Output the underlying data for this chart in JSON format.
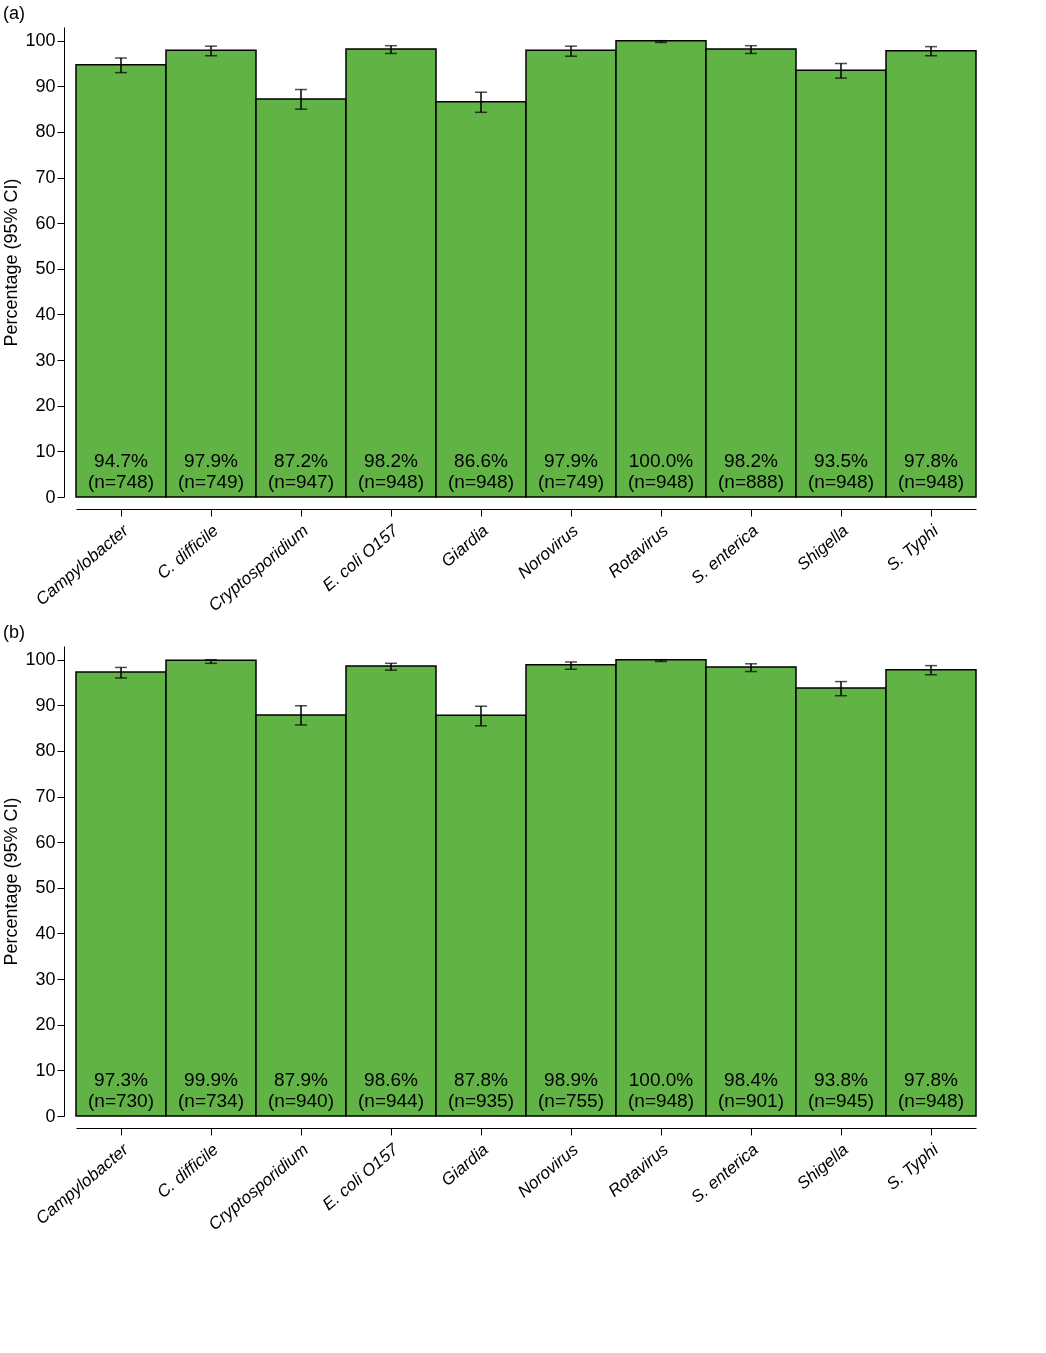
{
  "chart_data": [
    {
      "type": "bar",
      "title": "(a)",
      "ylabel": "Percentage (95% CI)",
      "categories": [
        "Campylobacter",
        "C. difficile",
        "Cryptosporidium",
        "E. coli O157",
        "Giardia",
        "Norovirus",
        "Rotavirus",
        "S. enterica",
        "Shigella",
        "S. Typhi"
      ],
      "series": [
        {
          "color": "#62b346",
          "values": [
            94.7,
            97.9,
            87.2,
            98.2,
            86.6,
            97.9,
            100.0,
            98.2,
            93.5,
            97.8
          ],
          "errors": [
            [
              93.0,
              96.2
            ],
            [
              96.7,
              98.8
            ],
            [
              85.0,
              89.3
            ],
            [
              97.2,
              98.9
            ],
            [
              84.3,
              88.7
            ],
            [
              96.6,
              98.8
            ],
            [
              99.6,
              100.0
            ],
            [
              97.2,
              98.9
            ],
            [
              91.8,
              95.0
            ],
            [
              96.7,
              98.7
            ]
          ],
          "value_labels": [
            "94.7%\n(n=748)",
            "97.9%\n(n=749)",
            "87.2%\n(n=947)",
            "98.2%\n(n=948)",
            "86.6%\n(n=948)",
            "97.9%\n(n=749)",
            "100.0%\n(n=948)",
            "98.2%\n(n=888)",
            "93.5%\n(n=948)",
            "97.8%\n(n=948)"
          ]
        }
      ],
      "ylim": [
        0,
        103
      ],
      "yticks": [
        0,
        10,
        20,
        30,
        40,
        50,
        60,
        70,
        80,
        90,
        100
      ],
      "grid": false
    },
    {
      "type": "bar",
      "title": "(b)",
      "ylabel": "Percentage (95% CI)",
      "categories": [
        "Campylobacter",
        "C. difficile",
        "Cryptosporidium",
        "E. coli O157",
        "Giardia",
        "Norovirus",
        "Rotavirus",
        "S. enterica",
        "Shigella",
        "S. Typhi"
      ],
      "series": [
        {
          "color": "#62b346",
          "values": [
            97.3,
            99.9,
            87.9,
            98.6,
            87.8,
            98.9,
            100.0,
            98.4,
            93.8,
            97.8
          ],
          "errors": [
            [
              96.0,
              98.3
            ],
            [
              99.2,
              100.0
            ],
            [
              85.7,
              89.9
            ],
            [
              97.7,
              99.2
            ],
            [
              85.5,
              89.8
            ],
            [
              97.9,
              99.5
            ],
            [
              99.6,
              100.0
            ],
            [
              97.4,
              99.1
            ],
            [
              92.1,
              95.2
            ],
            [
              96.7,
              98.7
            ]
          ],
          "value_labels": [
            "97.3%\n(n=730)",
            "99.9%\n(n=734)",
            "87.9%\n(n=940)",
            "98.6%\n(n=944)",
            "87.8%\n(n=935)",
            "98.9%\n(n=755)",
            "100.0%\n(n=948)",
            "98.4%\n(n=901)",
            "93.8%\n(n=945)",
            "97.8%\n(n=948)"
          ]
        }
      ],
      "ylim": [
        0,
        103
      ],
      "yticks": [
        0,
        10,
        20,
        30,
        40,
        50,
        60,
        70,
        80,
        90,
        100
      ],
      "grid": false
    }
  ]
}
